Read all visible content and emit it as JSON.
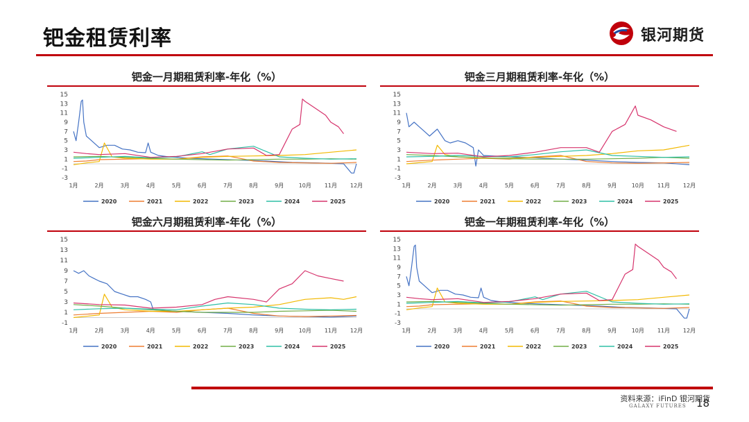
{
  "page": {
    "title": "钯金租赁利率",
    "logo_text": "银河期货",
    "source": "资料来源：iFinD 银河期货",
    "galaxy_en": "GALAXY FUTURES",
    "page_number": "18"
  },
  "colors": {
    "accent": "#c0000b",
    "2020": "#4472c4",
    "2021": "#ed7d31",
    "2022": "#f2b800",
    "2023": "#70ad47",
    "2024": "#2ebfa5",
    "2025": "#d6336c"
  },
  "chart_data": [
    {
      "type": "line",
      "title": "钯金一月期租赁利率-年化（%）",
      "x_tick_labels": [
        "1月",
        "2月",
        "3月",
        "4月",
        "5月",
        "6月",
        "7月",
        "8月",
        "9月",
        "10月",
        "11月",
        "12月"
      ],
      "y_ticks": [
        "15",
        "13",
        "11",
        "9",
        "7",
        "5",
        "3",
        "1",
        "-1",
        "-3"
      ],
      "ylim": [
        -3,
        15
      ],
      "legend": [
        "2020",
        "2021",
        "2022",
        "2023",
        "2024",
        "2025"
      ],
      "legend_position": "bottom",
      "series": [
        {
          "name": "2020",
          "x": [
            1,
            1.1,
            1.2,
            1.3,
            1.35,
            1.4,
            1.5,
            1.7,
            1.9,
            2.0,
            2.3,
            2.6,
            2.9,
            3.2,
            3.5,
            3.8,
            3.9,
            4.0,
            4.3,
            4.7,
            5.5,
            6.5,
            7.5,
            8.5,
            9.5,
            10.5,
            11.5,
            11.8,
            11.9,
            12.0
          ],
          "y": [
            7,
            5,
            9,
            13.5,
            13.8,
            9,
            6,
            5,
            4,
            3.5,
            4,
            4,
            3.2,
            3,
            2.5,
            2.4,
            4.5,
            2.5,
            1.8,
            1.5,
            1.2,
            1.0,
            0.8,
            0.6,
            0.3,
            0.2,
            0.0,
            -2,
            -2,
            0
          ]
        },
        {
          "name": "2021",
          "x": [
            1,
            1.5,
            2,
            3,
            4,
            5,
            6,
            7,
            8,
            9,
            10,
            11,
            12
          ],
          "y": [
            0.5,
            0.6,
            0.9,
            1.0,
            1.1,
            1.0,
            1.5,
            1.7,
            0.6,
            0.3,
            0.2,
            0.1,
            0.3
          ]
        },
        {
          "name": "2022",
          "x": [
            1,
            1.5,
            2,
            2.2,
            2.5,
            3,
            4,
            5,
            6,
            7,
            8,
            9,
            10,
            11,
            12
          ],
          "y": [
            -0.2,
            0.2,
            0.5,
            4.5,
            1.5,
            1.2,
            1.0,
            1.0,
            1.4,
            1.6,
            1.7,
            1.8,
            2.0,
            2.5,
            3.0
          ]
        },
        {
          "name": "2023",
          "x": [
            1,
            2,
            3,
            4,
            5,
            6,
            7,
            8,
            9,
            10,
            11,
            12
          ],
          "y": [
            1.5,
            1.6,
            1.4,
            1.2,
            1.0,
            0.9,
            0.8,
            0.9,
            1.0,
            1.0,
            1.1,
            1.0
          ]
        },
        {
          "name": "2024",
          "x": [
            1,
            2,
            3,
            4,
            5,
            6,
            6.3,
            7,
            8,
            9,
            10,
            11,
            12
          ],
          "y": [
            1.2,
            1.4,
            1.6,
            1.3,
            1.5,
            2.6,
            2.0,
            3.2,
            3.8,
            1.5,
            1.2,
            1.0,
            1.1
          ]
        },
        {
          "name": "2025",
          "x": [
            1,
            1.5,
            2,
            3,
            4,
            5,
            6,
            7,
            8,
            8.5,
            9,
            9.5,
            9.8,
            9.9,
            10,
            10.4,
            10.8,
            11,
            11.3,
            11.5
          ],
          "y": [
            2.5,
            2.2,
            2.0,
            2.2,
            1.4,
            1.6,
            2.2,
            3.2,
            3.4,
            1.8,
            2.0,
            7.5,
            8.5,
            14,
            13.5,
            12,
            10.5,
            9,
            8,
            6.5
          ]
        }
      ]
    },
    {
      "type": "line",
      "title": "钯金三月期租赁利率-年化（%）",
      "x_tick_labels": [
        "1月",
        "2月",
        "3月",
        "4月",
        "5月",
        "6月",
        "7月",
        "8月",
        "9月",
        "10月",
        "11月",
        "12月"
      ],
      "y_ticks": [
        "15",
        "13",
        "11",
        "9",
        "7",
        "5",
        "3",
        "1",
        "-1",
        "-3"
      ],
      "ylim": [
        -3,
        15
      ],
      "legend": [
        "2020",
        "2021",
        "2022",
        "2023",
        "2024",
        "2025"
      ],
      "legend_position": "bottom",
      "series": [
        {
          "name": "2020",
          "x": [
            1,
            1.1,
            1.3,
            1.5,
            1.7,
            1.9,
            2.2,
            2.5,
            2.7,
            3.0,
            3.3,
            3.6,
            3.7,
            3.8,
            4.0,
            5,
            6,
            7,
            8,
            9,
            10,
            11,
            12
          ],
          "y": [
            11,
            8,
            9,
            8,
            7,
            6,
            7.5,
            5,
            4.5,
            5,
            4.5,
            3.5,
            -0.5,
            3,
            1.8,
            1.5,
            1.3,
            1.0,
            0.8,
            0.5,
            0.3,
            0.2,
            -0.2
          ]
        },
        {
          "name": "2021",
          "x": [
            1,
            2,
            3,
            4,
            5,
            6,
            7,
            8,
            9,
            10,
            11,
            12
          ],
          "y": [
            0.5,
            0.8,
            1.0,
            1.2,
            1.0,
            1.5,
            1.8,
            0.5,
            0.2,
            0.1,
            0.2,
            0.3
          ]
        },
        {
          "name": "2022",
          "x": [
            1,
            2,
            2.2,
            2.5,
            3,
            4,
            5,
            6,
            7,
            8,
            9,
            10,
            11,
            12
          ],
          "y": [
            0.0,
            0.5,
            4.0,
            2.0,
            1.5,
            1.2,
            1.2,
            1.4,
            1.6,
            1.8,
            2.2,
            2.8,
            3.0,
            4.0
          ]
        },
        {
          "name": "2023",
          "x": [
            1,
            2,
            3,
            4,
            5,
            6,
            7,
            8,
            9,
            10,
            11,
            12
          ],
          "y": [
            2.0,
            1.8,
            1.5,
            1.3,
            1.1,
            1.0,
            1.0,
            1.0,
            1.1,
            1.2,
            1.4,
            1.2
          ]
        },
        {
          "name": "2024",
          "x": [
            1,
            2,
            3,
            4,
            5,
            6,
            7,
            8,
            9,
            10,
            11,
            12
          ],
          "y": [
            1.5,
            1.6,
            1.8,
            1.6,
            1.5,
            2.0,
            2.6,
            3.0,
            1.8,
            1.6,
            1.4,
            1.5
          ]
        },
        {
          "name": "2025",
          "x": [
            1,
            2,
            3,
            4,
            5,
            6,
            7,
            8,
            8.5,
            9,
            9.5,
            9.9,
            10,
            10.5,
            11,
            11.5
          ],
          "y": [
            2.5,
            2.2,
            2.3,
            1.5,
            1.8,
            2.5,
            3.5,
            3.5,
            2.5,
            7.0,
            8.5,
            12.5,
            10.5,
            9.5,
            8,
            7
          ]
        }
      ]
    },
    {
      "type": "line",
      "title": "钯金六月期租赁利率-年化（%）",
      "x_tick_labels": [
        "1月",
        "2月",
        "3月",
        "4月",
        "5月",
        "6月",
        "7月",
        "8月",
        "9月",
        "10月",
        "11月",
        "12月"
      ],
      "y_ticks": [
        "15",
        "13",
        "11",
        "9",
        "7",
        "5",
        "3",
        "1",
        "-1"
      ],
      "ylim": [
        -1,
        15
      ],
      "legend": [
        "2020",
        "2021",
        "2022",
        "2023",
        "2024",
        "2025"
      ],
      "legend_position": "bottom",
      "series": [
        {
          "name": "2020",
          "x": [
            1,
            1.2,
            1.4,
            1.6,
            1.8,
            2.0,
            2.3,
            2.6,
            2.9,
            3.2,
            3.5,
            3.8,
            4.0,
            4.1,
            5,
            6,
            7,
            8,
            9,
            10,
            11,
            12
          ],
          "y": [
            9,
            8.5,
            9,
            8,
            7.5,
            7,
            6.5,
            5,
            4.5,
            4,
            4,
            3.5,
            3,
            1.5,
            1.2,
            1.0,
            0.8,
            0.5,
            0.3,
            0.2,
            0.1,
            0.3
          ]
        },
        {
          "name": "2021",
          "x": [
            1,
            2,
            3,
            4,
            5,
            6,
            7,
            8,
            9,
            10,
            11,
            12
          ],
          "y": [
            0.5,
            0.8,
            1.0,
            1.2,
            1.0,
            1.5,
            1.8,
            0.8,
            0.3,
            0.2,
            0.3,
            0.4
          ]
        },
        {
          "name": "2022",
          "x": [
            1,
            2,
            2.2,
            2.5,
            3,
            4,
            5,
            6,
            7,
            8,
            9,
            10,
            11,
            11.5,
            12
          ],
          "y": [
            0.0,
            0.5,
            4.5,
            2.0,
            1.5,
            1.2,
            1.2,
            1.5,
            1.8,
            2.0,
            2.5,
            3.5,
            3.8,
            3.5,
            4.0
          ]
        },
        {
          "name": "2023",
          "x": [
            1,
            2,
            3,
            4,
            5,
            6,
            7,
            8,
            9,
            10,
            11,
            12
          ],
          "y": [
            2.5,
            2.2,
            1.8,
            1.5,
            1.2,
            1.0,
            1.0,
            1.0,
            1.2,
            1.3,
            1.4,
            1.2
          ]
        },
        {
          "name": "2024",
          "x": [
            1,
            2,
            3,
            4,
            5,
            6,
            7,
            8,
            9,
            10,
            11,
            12
          ],
          "y": [
            1.5,
            1.7,
            1.8,
            1.6,
            1.5,
            2.2,
            2.8,
            2.5,
            1.8,
            1.6,
            1.5,
            1.6
          ]
        },
        {
          "name": "2025",
          "x": [
            1,
            2,
            3,
            4,
            5,
            6,
            6.5,
            7,
            8,
            8.5,
            9,
            9.5,
            10,
            10.5,
            11,
            11.5
          ],
          "y": [
            2.8,
            2.5,
            2.4,
            1.8,
            2.0,
            2.5,
            3.5,
            4.0,
            3.5,
            3.0,
            5.5,
            6.5,
            9.0,
            8.0,
            7.5,
            7.0
          ]
        }
      ]
    },
    {
      "type": "line",
      "title": "钯金一年期租赁利率-年化（%）",
      "x_tick_labels": [
        "1月",
        "2月",
        "3月",
        "4月",
        "5月",
        "6月",
        "7月",
        "8月",
        "9月",
        "10月",
        "11月",
        "12月"
      ],
      "y_ticks": [
        "15",
        "13",
        "11",
        "9",
        "7",
        "5",
        "3",
        "1",
        "-1",
        "-3"
      ],
      "ylim": [
        -3,
        15
      ],
      "legend": [
        "2020",
        "2021",
        "2022",
        "2023",
        "2024",
        "2025"
      ],
      "legend_position": "bottom",
      "series": [
        {
          "name": "2020",
          "x": [
            1,
            1.1,
            1.2,
            1.3,
            1.35,
            1.4,
            1.5,
            1.7,
            1.9,
            2.0,
            2.3,
            2.6,
            2.9,
            3.2,
            3.5,
            3.8,
            3.9,
            4.0,
            4.3,
            4.7,
            5.5,
            6.5,
            7.5,
            8.5,
            9.5,
            10.5,
            11.5,
            11.8,
            11.9,
            12.0
          ],
          "y": [
            7,
            5,
            9,
            13.5,
            13.8,
            9,
            6,
            5,
            4,
            3.5,
            4,
            4,
            3.2,
            3,
            2.5,
            2.4,
            4.5,
            2.5,
            1.8,
            1.5,
            1.2,
            1.0,
            0.8,
            0.6,
            0.3,
            0.2,
            0.0,
            -2,
            -2,
            0
          ]
        },
        {
          "name": "2021",
          "x": [
            1,
            1.5,
            2,
            3,
            4,
            5,
            6,
            7,
            8,
            9,
            10,
            11,
            12
          ],
          "y": [
            0.5,
            0.6,
            0.9,
            1.0,
            1.1,
            1.0,
            1.5,
            1.7,
            0.6,
            0.3,
            0.2,
            0.1,
            0.3
          ]
        },
        {
          "name": "2022",
          "x": [
            1,
            1.5,
            2,
            2.2,
            2.5,
            3,
            4,
            5,
            6,
            7,
            8,
            9,
            10,
            11,
            12
          ],
          "y": [
            -0.2,
            0.2,
            0.5,
            4.5,
            1.5,
            1.2,
            1.0,
            1.0,
            1.4,
            1.6,
            1.7,
            1.8,
            2.0,
            2.5,
            3.0
          ]
        },
        {
          "name": "2023",
          "x": [
            1,
            2,
            3,
            4,
            5,
            6,
            7,
            8,
            9,
            10,
            11,
            12
          ],
          "y": [
            1.5,
            1.6,
            1.4,
            1.2,
            1.0,
            0.9,
            0.8,
            0.9,
            1.0,
            1.0,
            1.1,
            1.0
          ]
        },
        {
          "name": "2024",
          "x": [
            1,
            2,
            3,
            4,
            5,
            6,
            6.3,
            7,
            8,
            9,
            10,
            11,
            12
          ],
          "y": [
            1.2,
            1.4,
            1.6,
            1.3,
            1.5,
            2.6,
            2.0,
            3.2,
            3.8,
            1.5,
            1.2,
            1.0,
            1.1
          ]
        },
        {
          "name": "2025",
          "x": [
            1,
            1.5,
            2,
            3,
            4,
            5,
            6,
            7,
            8,
            8.5,
            9,
            9.5,
            9.8,
            9.9,
            10,
            10.4,
            10.8,
            11,
            11.3,
            11.5
          ],
          "y": [
            2.5,
            2.2,
            2.0,
            2.2,
            1.4,
            1.6,
            2.2,
            3.2,
            3.4,
            1.8,
            2.0,
            7.5,
            8.5,
            14,
            13.5,
            12,
            10.5,
            9,
            8,
            6.5
          ]
        }
      ]
    }
  ]
}
